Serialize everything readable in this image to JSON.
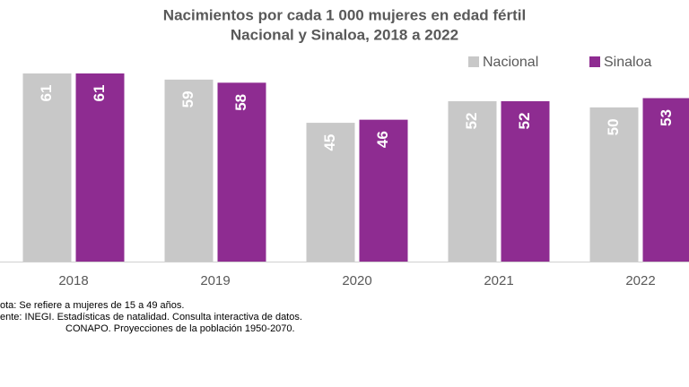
{
  "chart_data": {
    "type": "bar",
    "title": "Nacimientos por cada 1 000 mujeres en edad fértil",
    "subtitle": "Nacional y Sinaloa, 2018 a 2022",
    "categories": [
      "2018",
      "2019",
      "2020",
      "2021",
      "2022"
    ],
    "series": [
      {
        "name": "Nacional",
        "color": "#c8c8c8",
        "values": [
          61,
          59,
          45,
          52,
          50
        ]
      },
      {
        "name": "Sinaloa",
        "color": "#8e2c91",
        "values": [
          61,
          58,
          46,
          52,
          53
        ]
      }
    ],
    "legend": "top-right",
    "notes": [
      "ota: Se refiere a mujeres de 15 a 49 años.",
      "ente: INEGI. Estadísticas de natalidad. Consulta interactiva de datos.",
      "CONAPO. Proyecciones de la población 1950-2070."
    ]
  }
}
